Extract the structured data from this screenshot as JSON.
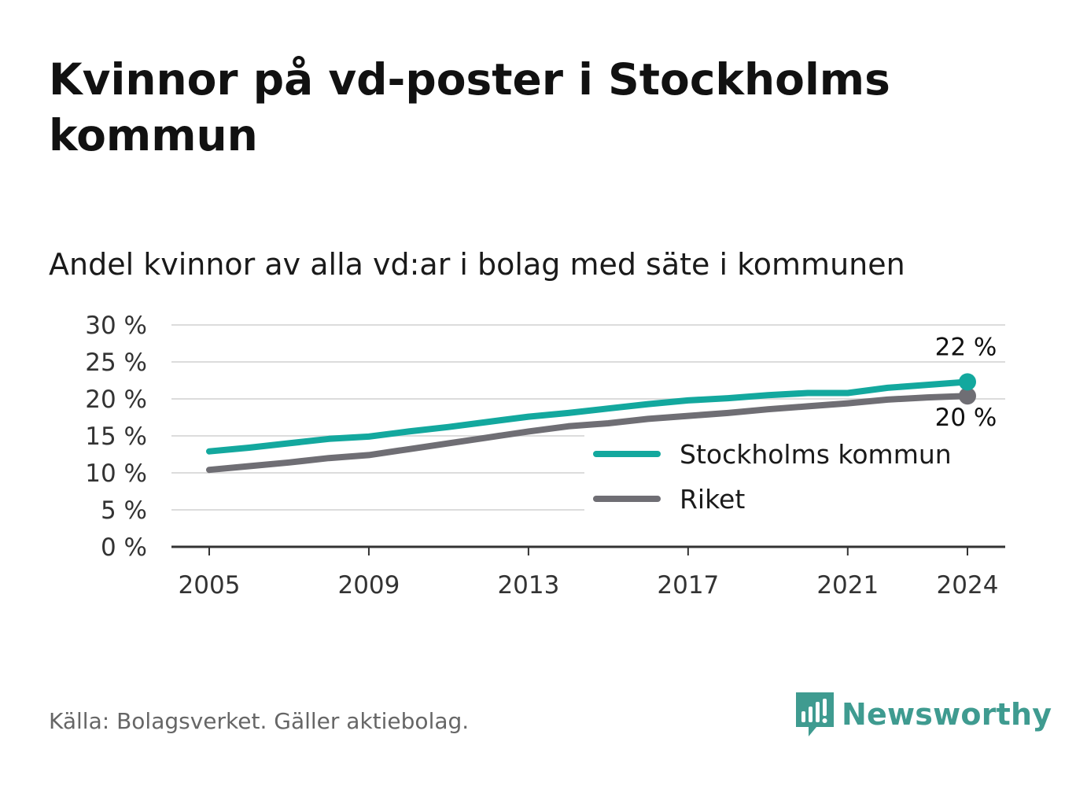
{
  "title": "Kvinnor på vd-poster i Stockholms kommun",
  "subtitle": "Andel kvinnor av alla vd:ar i bolag med säte i kommunen",
  "source": "Källa: Bolagsverket. Gäller aktiebolag.",
  "brand": {
    "name": "Newsworthy",
    "icon": "newsworthy-logo-icon",
    "color": "#3f9b90"
  },
  "chart_data": {
    "type": "line",
    "title": "Kvinnor på vd-poster i Stockholms kommun",
    "subtitle": "Andel kvinnor av alla vd:ar i bolag med säte i kommunen",
    "x_ticks": [
      "2005",
      "2009",
      "2013",
      "2017",
      "2021",
      "2024"
    ],
    "y_ticks": [
      "0 %",
      "5 %",
      "10 %",
      "15 %",
      "20 %",
      "25 %",
      "30 %"
    ],
    "ylim": [
      0,
      30
    ],
    "xlim": [
      2004,
      2025
    ],
    "grid": true,
    "legend_position": "bottom-right",
    "x": [
      2005,
      2006,
      2007,
      2008,
      2009,
      2010,
      2011,
      2012,
      2013,
      2014,
      2015,
      2016,
      2017,
      2018,
      2019,
      2020,
      2021,
      2022,
      2023,
      2024
    ],
    "series": [
      {
        "name": "Stockholms kommun",
        "color": "#13a89e",
        "values": [
          12.9,
          13.4,
          14.0,
          14.6,
          14.9,
          15.6,
          16.2,
          16.9,
          17.6,
          18.1,
          18.7,
          19.3,
          19.8,
          20.1,
          20.5,
          20.8,
          20.8,
          21.5,
          21.9,
          22.3
        ],
        "end_label": "22 %"
      },
      {
        "name": "Riket",
        "color": "#6f6e74",
        "values": [
          10.4,
          10.9,
          11.4,
          12.0,
          12.4,
          13.2,
          14.0,
          14.8,
          15.6,
          16.3,
          16.7,
          17.3,
          17.7,
          18.1,
          18.6,
          19.0,
          19.4,
          19.9,
          20.2,
          20.4
        ],
        "end_label": "20 %"
      }
    ]
  }
}
